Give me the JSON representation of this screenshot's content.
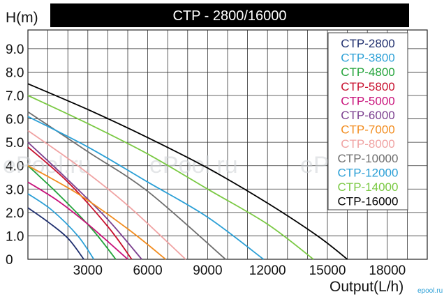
{
  "chart_data": {
    "type": "line",
    "title": "CTP - 2800/16000",
    "ylabel": "H(m)",
    "xlabel": "Output(L/h)",
    "xlim": [
      0,
      20000
    ],
    "ylim": [
      0,
      9.8
    ],
    "x_ticks": [
      "3000",
      "6000",
      "9000",
      "12000",
      "15000",
      "18000"
    ],
    "x_tick_values": [
      3000,
      6000,
      9000,
      12000,
      15000,
      18000
    ],
    "y_ticks": [
      "0",
      "1.0",
      "2.0",
      "3.0",
      "4.0",
      "5.0",
      "6.0",
      "7.0",
      "8.0",
      "9.0"
    ],
    "y_tick_values": [
      0,
      1,
      2,
      3,
      4,
      5,
      6,
      7,
      8,
      9
    ],
    "grid": true,
    "legend_position": "top-right",
    "series": [
      {
        "name": "CTP-2800",
        "color": "#1f2f6e",
        "points": [
          [
            0,
            2.2
          ],
          [
            1000,
            1.6
          ],
          [
            2000,
            0.9
          ],
          [
            2800,
            0
          ]
        ]
      },
      {
        "name": "CTP-3800",
        "color": "#2a9fd6",
        "points": [
          [
            0,
            2.8
          ],
          [
            1200,
            2.1
          ],
          [
            2500,
            1.0
          ],
          [
            3300,
            0
          ]
        ]
      },
      {
        "name": "CTP-4800",
        "color": "#23a33a",
        "points": [
          [
            0,
            4.0
          ],
          [
            1500,
            2.8
          ],
          [
            3200,
            1.3
          ],
          [
            4400,
            0
          ]
        ]
      },
      {
        "name": "CTP-5800",
        "color": "#c8102e",
        "points": [
          [
            0,
            4.8
          ],
          [
            2000,
            3.3
          ],
          [
            4000,
            1.4
          ],
          [
            5200,
            0
          ]
        ]
      },
      {
        "name": "CTP-5000",
        "color": "#c8117a",
        "points": [
          [
            0,
            3.3
          ],
          [
            1500,
            2.5
          ],
          [
            3000,
            1.5
          ],
          [
            5000,
            0
          ]
        ]
      },
      {
        "name": "CTP-6000",
        "color": "#7b3f8f",
        "points": [
          [
            0,
            5.0
          ],
          [
            2000,
            3.4
          ],
          [
            4000,
            1.7
          ],
          [
            5700,
            0
          ]
        ]
      },
      {
        "name": "CTP-7000",
        "color": "#f28c1e",
        "points": [
          [
            0,
            4.0
          ],
          [
            2500,
            2.8
          ],
          [
            5000,
            1.3
          ],
          [
            6900,
            0
          ]
        ]
      },
      {
        "name": "CTP-8000",
        "color": "#f0a3a3",
        "points": [
          [
            0,
            5.5
          ],
          [
            2500,
            4.0
          ],
          [
            5000,
            2.3
          ],
          [
            7900,
            0
          ]
        ]
      },
      {
        "name": "CTP-10000",
        "color": "#6e6e6e",
        "points": [
          [
            0,
            6.3
          ],
          [
            3000,
            4.6
          ],
          [
            6000,
            2.9
          ],
          [
            9900,
            0
          ]
        ]
      },
      {
        "name": "CTP-12000",
        "color": "#2a9fd6",
        "points": [
          [
            0,
            6.1
          ],
          [
            3000,
            4.8
          ],
          [
            6000,
            3.3
          ],
          [
            9000,
            1.8
          ],
          [
            11800,
            0
          ]
        ]
      },
      {
        "name": "CTP-14000",
        "color": "#7ac943",
        "points": [
          [
            0,
            7.0
          ],
          [
            3000,
            5.8
          ],
          [
            6000,
            4.5
          ],
          [
            9000,
            3.0
          ],
          [
            12000,
            1.5
          ],
          [
            14300,
            0
          ]
        ]
      },
      {
        "name": "CTP-16000",
        "color": "#000000",
        "points": [
          [
            0,
            7.5
          ],
          [
            3000,
            6.4
          ],
          [
            6000,
            5.2
          ],
          [
            9000,
            3.9
          ],
          [
            12000,
            2.4
          ],
          [
            14500,
            1.0
          ],
          [
            16000,
            0
          ]
        ]
      }
    ],
    "watermarks": [
      "ePool.ru",
      "ePool.ru",
      "ePool.ru"
    ],
    "corner_mark": "epool.ru"
  }
}
